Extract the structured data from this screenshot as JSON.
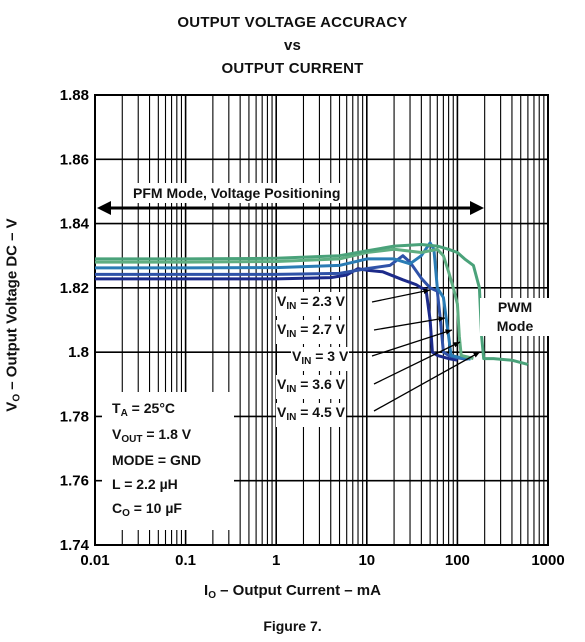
{
  "chart_data": {
    "type": "line",
    "title_lines": [
      "OUTPUT VOLTAGE ACCURACY",
      "vs",
      "OUTPUT CURRENT"
    ],
    "xlabel": {
      "main": "I",
      "sub": "O",
      "rest": " – Output Current – mA"
    },
    "ylabel": {
      "main": "V",
      "sub": "O",
      "rest": " – Output Voltage DC – V"
    },
    "xscale": "log",
    "xlim": [
      0.01,
      1000
    ],
    "ylim": [
      1.74,
      1.88
    ],
    "xticks": [
      "0.01",
      "0.1",
      "1",
      "10",
      "100",
      "1000"
    ],
    "yticks": [
      "1.74",
      "1.76",
      "1.78",
      "1.8",
      "1.82",
      "1.84",
      "1.86",
      "1.88"
    ],
    "grid": true,
    "annotation_pfm": "PFM Mode, Voltage Positioning",
    "annotation_pwm": [
      "PWM",
      "Mode"
    ],
    "conditions": [
      {
        "main": "T",
        "sub": "A",
        "rest": " = 25°C"
      },
      {
        "main": "V",
        "sub": "OUT",
        "rest": " = 1.8 V"
      },
      {
        "main": "MODE = GND",
        "sub": "",
        "rest": ""
      },
      {
        "main": "L = 2.2 µH",
        "sub": "",
        "rest": ""
      },
      {
        "main": "C",
        "sub": "O",
        "rest": " = 10 µF"
      }
    ],
    "series": [
      {
        "label_main": "V",
        "label_sub": "IN",
        "label_rest": " = 2.3 V",
        "color": "#1c2a8a",
        "points": [
          [
            0.01,
            1.8228
          ],
          [
            0.1,
            1.8228
          ],
          [
            1,
            1.8228
          ],
          [
            4,
            1.8232
          ],
          [
            6,
            1.824
          ],
          [
            8,
            1.826
          ],
          [
            10,
            1.8255
          ],
          [
            15,
            1.825
          ],
          [
            25,
            1.8225
          ],
          [
            35,
            1.821
          ],
          [
            40,
            1.82
          ],
          [
            45,
            1.8195
          ],
          [
            50,
            1.81
          ],
          [
            53,
            1.8
          ],
          [
            60,
            1.799
          ],
          [
            80,
            1.798
          ],
          [
            100,
            1.7975
          ]
        ]
      },
      {
        "label_main": "V",
        "label_sub": "IN",
        "label_rest": " = 2.7 V",
        "color": "#2f52a8",
        "points": [
          [
            0.01,
            1.8242
          ],
          [
            0.1,
            1.8242
          ],
          [
            1,
            1.8242
          ],
          [
            5,
            1.8245
          ],
          [
            10,
            1.826
          ],
          [
            18,
            1.827
          ],
          [
            25,
            1.83
          ],
          [
            30,
            1.828
          ],
          [
            40,
            1.823
          ],
          [
            50,
            1.82
          ],
          [
            60,
            1.819
          ],
          [
            65,
            1.81
          ],
          [
            70,
            1.8
          ],
          [
            80,
            1.799
          ],
          [
            100,
            1.7982
          ],
          [
            130,
            1.7978
          ]
        ]
      },
      {
        "label_main": "V",
        "label_sub": "IN",
        "label_rest": " = 3 V",
        "color": "#2a7cb5",
        "points": [
          [
            0.01,
            1.8262
          ],
          [
            0.1,
            1.8262
          ],
          [
            1,
            1.8263
          ],
          [
            5,
            1.827
          ],
          [
            10,
            1.829
          ],
          [
            20,
            1.829
          ],
          [
            30,
            1.8275
          ],
          [
            40,
            1.83
          ],
          [
            50,
            1.834
          ],
          [
            55,
            1.832
          ],
          [
            60,
            1.82
          ],
          [
            70,
            1.817
          ],
          [
            80,
            1.805
          ],
          [
            85,
            1.799
          ],
          [
            100,
            1.7985
          ],
          [
            140,
            1.7978
          ]
        ]
      },
      {
        "label_main": "V",
        "label_sub": "IN",
        "label_rest": " = 3.6 V",
        "color": "#5fae82",
        "points": [
          [
            0.01,
            1.828
          ],
          [
            0.1,
            1.828
          ],
          [
            1,
            1.8282
          ],
          [
            5,
            1.829
          ],
          [
            10,
            1.831
          ],
          [
            20,
            1.832
          ],
          [
            40,
            1.831
          ],
          [
            60,
            1.832
          ],
          [
            70,
            1.83
          ],
          [
            80,
            1.825
          ],
          [
            90,
            1.82
          ],
          [
            100,
            1.815
          ],
          [
            105,
            1.805
          ],
          [
            110,
            1.799
          ],
          [
            130,
            1.7985
          ],
          [
            150,
            1.798
          ]
        ]
      },
      {
        "label_main": "V",
        "label_sub": "IN",
        "label_rest": " = 4.5 V",
        "color": "#4aa27a",
        "points": [
          [
            0.01,
            1.829
          ],
          [
            0.1,
            1.829
          ],
          [
            1,
            1.8292
          ],
          [
            5,
            1.83
          ],
          [
            10,
            1.8315
          ],
          [
            20,
            1.833
          ],
          [
            40,
            1.8335
          ],
          [
            60,
            1.833
          ],
          [
            80,
            1.832
          ],
          [
            100,
            1.831
          ],
          [
            120,
            1.829
          ],
          [
            150,
            1.827
          ],
          [
            175,
            1.82
          ],
          [
            185,
            1.805
          ],
          [
            195,
            1.798
          ],
          [
            250,
            1.798
          ],
          [
            400,
            1.7975
          ],
          [
            600,
            1.7962
          ]
        ]
      }
    ]
  }
}
